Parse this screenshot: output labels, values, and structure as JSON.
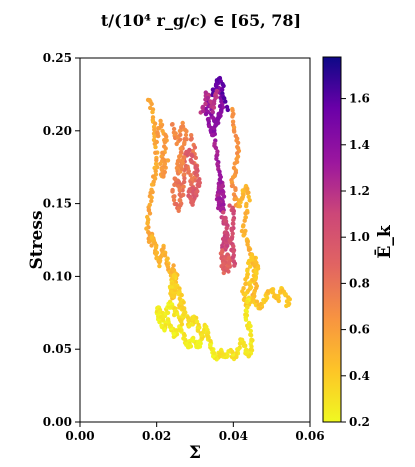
{
  "chart_data": {
    "type": "scatter",
    "title": "t/(10⁴ r_g/c) ∈ [65, 78]",
    "xlabel": "Σ",
    "ylabel": "Stress",
    "xlim": [
      0.0,
      0.06
    ],
    "ylim": [
      0.0,
      0.25
    ],
    "x_ticks": [
      "0.00",
      "0.02",
      "0.04",
      "0.06"
    ],
    "y_ticks": [
      "0.00",
      "0.05",
      "0.10",
      "0.15",
      "0.20",
      "0.25"
    ],
    "grid": false,
    "colorbar": {
      "label": "Ē_k",
      "colormap": "plasma_r",
      "range": [
        0.2,
        1.78
      ],
      "ticks": [
        "0.2",
        "0.4",
        "0.6",
        "0.8",
        "1.0",
        "1.2",
        "1.4",
        "1.6"
      ]
    },
    "tracks": [
      {
        "ek": 1.4,
        "x": [
          0.0355,
          0.0365,
          0.0372,
          0.0368,
          0.0362,
          0.0352,
          0.0344,
          0.0338,
          0.0332,
          0.033,
          0.0334,
          0.0342,
          0.035,
          0.0356,
          0.0361,
          0.0366
        ],
        "y": [
          0.232,
          0.228,
          0.222,
          0.214,
          0.209,
          0.205,
          0.212,
          0.218,
          0.22,
          0.214,
          0.207,
          0.201,
          0.198,
          0.204,
          0.21,
          0.216
        ]
      },
      {
        "ek": 1.6,
        "x": [
          0.0345,
          0.0352,
          0.0358,
          0.0364,
          0.037,
          0.0376,
          0.0382
        ],
        "y": [
          0.225,
          0.229,
          0.234,
          0.236,
          0.232,
          0.224,
          0.215
        ]
      },
      {
        "ek": 1.2,
        "x": [
          0.0318,
          0.0325,
          0.0331,
          0.0338,
          0.0347,
          0.0353,
          0.036
        ],
        "y": [
          0.212,
          0.219,
          0.226,
          0.221,
          0.214,
          0.222,
          0.227
        ]
      },
      {
        "ek": 1.3,
        "x": [
          0.0346,
          0.0352,
          0.0358,
          0.0363,
          0.0366,
          0.0362,
          0.0359,
          0.0366,
          0.0373,
          0.0377,
          0.0372,
          0.0365,
          0.0361,
          0.0368,
          0.0374
        ],
        "y": [
          0.198,
          0.19,
          0.182,
          0.175,
          0.168,
          0.16,
          0.152,
          0.146,
          0.151,
          0.158,
          0.165,
          0.16,
          0.154,
          0.149,
          0.144
        ]
      },
      {
        "ek": 1.1,
        "x": [
          0.037,
          0.0374,
          0.038,
          0.0386,
          0.0383,
          0.0377,
          0.0372,
          0.0377,
          0.0383,
          0.0388
        ],
        "y": [
          0.143,
          0.136,
          0.14,
          0.134,
          0.127,
          0.13,
          0.122,
          0.118,
          0.123,
          0.128
        ]
      },
      {
        "ek": 0.9,
        "x": [
          0.0368,
          0.0373,
          0.0378,
          0.0385,
          0.039,
          0.0385,
          0.0378,
          0.0372,
          0.0379,
          0.0386,
          0.039
        ],
        "y": [
          0.118,
          0.112,
          0.107,
          0.104,
          0.11,
          0.115,
          0.112,
          0.107,
          0.103,
          0.107,
          0.113
        ]
      },
      {
        "ek": 1.05,
        "x": [
          0.0394,
          0.0398,
          0.0402,
          0.0398,
          0.0394,
          0.0398,
          0.0403,
          0.04
        ],
        "y": [
          0.148,
          0.144,
          0.137,
          0.131,
          0.125,
          0.119,
          0.114,
          0.108
        ]
      },
      {
        "ek": 0.8,
        "x": [
          0.029,
          0.0296,
          0.0302,
          0.03,
          0.0293,
          0.0287,
          0.028,
          0.0274,
          0.0268,
          0.0262,
          0.0256,
          0.025,
          0.0244,
          0.0248,
          0.0255,
          0.0262,
          0.0268
        ],
        "y": [
          0.198,
          0.188,
          0.178,
          0.169,
          0.162,
          0.17,
          0.176,
          0.171,
          0.163,
          0.157,
          0.163,
          0.168,
          0.16,
          0.152,
          0.146,
          0.15,
          0.156
        ]
      },
      {
        "ek": 0.95,
        "x": [
          0.0268,
          0.0275,
          0.0283,
          0.0291,
          0.0298,
          0.0305,
          0.0312,
          0.0306,
          0.0298,
          0.029,
          0.0283,
          0.029,
          0.0298,
          0.0306
        ],
        "y": [
          0.178,
          0.183,
          0.187,
          0.182,
          0.176,
          0.172,
          0.166,
          0.16,
          0.156,
          0.16,
          0.155,
          0.15,
          0.153,
          0.158
        ]
      },
      {
        "ek": 0.7,
        "x": [
          0.024,
          0.0248,
          0.0256,
          0.0262,
          0.027,
          0.0277,
          0.0271,
          0.0264,
          0.0258,
          0.0252,
          0.0258,
          0.0266,
          0.0274
        ],
        "y": [
          0.205,
          0.198,
          0.192,
          0.199,
          0.205,
          0.197,
          0.19,
          0.186,
          0.18,
          0.175,
          0.17,
          0.176,
          0.181
        ]
      },
      {
        "ek": 0.55,
        "x": [
          0.018,
          0.0186,
          0.019,
          0.0194,
          0.0198,
          0.02,
          0.0198,
          0.0194,
          0.019,
          0.0186,
          0.0182,
          0.0178,
          0.0176,
          0.018,
          0.0185,
          0.019
        ],
        "y": [
          0.222,
          0.216,
          0.208,
          0.2,
          0.192,
          0.184,
          0.176,
          0.169,
          0.162,
          0.155,
          0.148,
          0.141,
          0.134,
          0.128,
          0.122,
          0.129
        ]
      },
      {
        "ek": 0.6,
        "x": [
          0.02,
          0.0206,
          0.0212,
          0.0218,
          0.0224,
          0.022,
          0.0214,
          0.021,
          0.0216,
          0.0222,
          0.0228
        ],
        "y": [
          0.196,
          0.201,
          0.206,
          0.199,
          0.193,
          0.186,
          0.18,
          0.173,
          0.168,
          0.174,
          0.18
        ]
      },
      {
        "ek": 0.5,
        "x": [
          0.019,
          0.0194,
          0.0199,
          0.0203,
          0.0207,
          0.0211,
          0.0216,
          0.0222,
          0.0228,
          0.0234,
          0.024,
          0.0246,
          0.025,
          0.0247,
          0.0244,
          0.024
        ],
        "y": [
          0.128,
          0.122,
          0.117,
          0.112,
          0.108,
          0.114,
          0.12,
          0.115,
          0.109,
          0.105,
          0.101,
          0.107,
          0.1,
          0.094,
          0.089,
          0.084
        ]
      },
      {
        "ek": 0.65,
        "x": [
          0.0395,
          0.04,
          0.0404,
          0.0408,
          0.0412,
          0.0408,
          0.0403,
          0.0398,
          0.0402,
          0.0407,
          0.0412
        ],
        "y": [
          0.215,
          0.209,
          0.201,
          0.193,
          0.186,
          0.179,
          0.172,
          0.166,
          0.16,
          0.154,
          0.148
        ]
      },
      {
        "ek": 0.5,
        "x": [
          0.0412,
          0.0418,
          0.0424,
          0.043,
          0.0436,
          0.044,
          0.0436,
          0.043,
          0.0426,
          0.0432,
          0.044,
          0.0446,
          0.045,
          0.0456,
          0.046,
          0.0457,
          0.0452
        ],
        "y": [
          0.148,
          0.152,
          0.156,
          0.16,
          0.162,
          0.155,
          0.146,
          0.14,
          0.132,
          0.126,
          0.122,
          0.116,
          0.11,
          0.104,
          0.098,
          0.092,
          0.086
        ]
      },
      {
        "ek": 0.42,
        "x": [
          0.044,
          0.0446,
          0.0452,
          0.0458,
          0.0462,
          0.0457,
          0.045,
          0.0444,
          0.0438,
          0.0432,
          0.0426,
          0.043,
          0.0437,
          0.0444,
          0.0452,
          0.046,
          0.0468,
          0.0476,
          0.0484,
          0.0492,
          0.05,
          0.0508,
          0.0515,
          0.0522,
          0.053,
          0.0538,
          0.0545,
          0.054
        ],
        "y": [
          0.09,
          0.094,
          0.098,
          0.102,
          0.107,
          0.112,
          0.115,
          0.11,
          0.104,
          0.098,
          0.09,
          0.084,
          0.08,
          0.083,
          0.086,
          0.082,
          0.078,
          0.081,
          0.085,
          0.089,
          0.091,
          0.087,
          0.084,
          0.088,
          0.092,
          0.088,
          0.084,
          0.08
        ]
      },
      {
        "ek": 0.28,
        "x": [
          0.044,
          0.0436,
          0.0432,
          0.0438,
          0.0444,
          0.045,
          0.0446,
          0.044,
          0.0434,
          0.0428,
          0.0422,
          0.0416,
          0.041,
          0.0404,
          0.0398,
          0.0392,
          0.0386,
          0.038,
          0.0374,
          0.0368,
          0.0362,
          0.0356,
          0.035
        ],
        "y": [
          0.086,
          0.08,
          0.074,
          0.068,
          0.062,
          0.056,
          0.05,
          0.045,
          0.048,
          0.053,
          0.057,
          0.052,
          0.047,
          0.044,
          0.046,
          0.05,
          0.047,
          0.044,
          0.046,
          0.049,
          0.046,
          0.043,
          0.046
        ]
      },
      {
        "ek": 0.25,
        "x": [
          0.035,
          0.0344,
          0.0338,
          0.0332,
          0.0326,
          0.032,
          0.0314,
          0.0308,
          0.0302,
          0.0296,
          0.029,
          0.0284,
          0.0278,
          0.0272,
          0.0266,
          0.026,
          0.0254,
          0.0248,
          0.0242,
          0.0236,
          0.023,
          0.0224,
          0.0218,
          0.0212,
          0.0206,
          0.0202,
          0.0206,
          0.0212,
          0.0218,
          0.0224,
          0.023,
          0.0236,
          0.0242,
          0.0248
        ],
        "y": [
          0.046,
          0.05,
          0.055,
          0.06,
          0.064,
          0.06,
          0.055,
          0.051,
          0.054,
          0.058,
          0.055,
          0.051,
          0.054,
          0.058,
          0.062,
          0.066,
          0.062,
          0.058,
          0.062,
          0.067,
          0.071,
          0.067,
          0.063,
          0.067,
          0.071,
          0.075,
          0.079,
          0.074,
          0.07,
          0.074,
          0.078,
          0.082,
          0.078,
          0.074
        ]
      },
      {
        "ek": 0.3,
        "x": [
          0.025,
          0.0256,
          0.0262,
          0.0268,
          0.0274,
          0.028,
          0.0286,
          0.0292,
          0.0298,
          0.0304,
          0.031,
          0.0316,
          0.0322,
          0.0328,
          0.0334,
          0.034
        ],
        "y": [
          0.078,
          0.073,
          0.068,
          0.072,
          0.076,
          0.07,
          0.065,
          0.069,
          0.073,
          0.068,
          0.063,
          0.058,
          0.062,
          0.066,
          0.061,
          0.056
        ]
      },
      {
        "ek": 0.35,
        "x": [
          0.024,
          0.0244,
          0.0248,
          0.0244,
          0.024,
          0.0236,
          0.024,
          0.0246,
          0.0252,
          0.0258,
          0.0264,
          0.027,
          0.0266,
          0.026
        ],
        "y": [
          0.088,
          0.092,
          0.097,
          0.101,
          0.096,
          0.091,
          0.086,
          0.09,
          0.094,
          0.09,
          0.085,
          0.081,
          0.077,
          0.081
        ]
      }
    ]
  }
}
